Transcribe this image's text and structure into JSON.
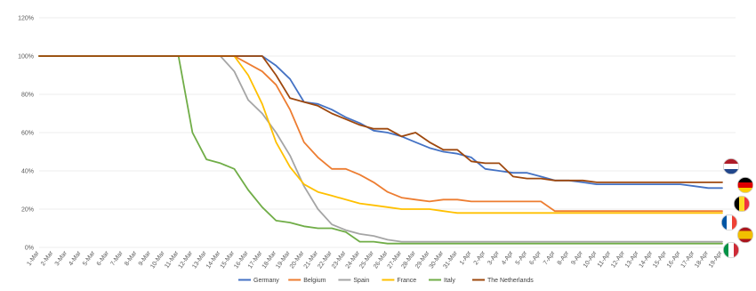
{
  "chart_data": {
    "type": "line",
    "title": "",
    "xlabel": "",
    "ylabel": "",
    "ylim": [
      0,
      120
    ],
    "yticks": [
      "0%",
      "20%",
      "40%",
      "60%",
      "80%",
      "100%",
      "120%"
    ],
    "grid": true,
    "legend_position": "bottom",
    "categories": [
      "1-Mar",
      "2-Mar",
      "3-Mar",
      "4-Mar",
      "5-Mar",
      "6-Mar",
      "7-Mar",
      "8-Mar",
      "9-Mar",
      "10-Mar",
      "11-Mar",
      "12-Mar",
      "13-Mar",
      "14-Mar",
      "15-Mar",
      "16-Mar",
      "17-Mar",
      "18-Mar",
      "19-Mar",
      "20-Mar",
      "21-Mar",
      "22-Mar",
      "23-Mar",
      "24-Mar",
      "25-Mar",
      "26-Mar",
      "27-Mar",
      "28-Mar",
      "29-Mar",
      "30-Mar",
      "31-Mar",
      "1-Apr",
      "2-Apr",
      "3-Apr",
      "4-Apr",
      "5-Apr",
      "6-Apr",
      "7-Apr",
      "8-Apr",
      "9-Apr",
      "10-Apr",
      "11-Apr",
      "12-Apr",
      "13-Apr",
      "14-Apr",
      "15-Apr",
      "16-Apr",
      "17-Apr",
      "18-Apr",
      "19-Apr"
    ],
    "series": [
      {
        "name": "Germany",
        "color": "#4472c4",
        "flag": "germany-flag-icon",
        "values": [
          100,
          100,
          100,
          100,
          100,
          100,
          100,
          100,
          100,
          100,
          100,
          100,
          100,
          100,
          100,
          100,
          100,
          95,
          88,
          76,
          75,
          72,
          68,
          65,
          61,
          60,
          58,
          55,
          52,
          50,
          49,
          47,
          41,
          40,
          39,
          39,
          37,
          35,
          35,
          34,
          33,
          33,
          33,
          33,
          33,
          33,
          33,
          32,
          31,
          31
        ]
      },
      {
        "name": "Belgium",
        "color": "#ed7d31",
        "flag": "belgium-flag-icon",
        "values": [
          100,
          100,
          100,
          100,
          100,
          100,
          100,
          100,
          100,
          100,
          100,
          100,
          100,
          100,
          100,
          96,
          92,
          85,
          72,
          55,
          47,
          41,
          41,
          38,
          34,
          29,
          26,
          25,
          24,
          25,
          25,
          24,
          24,
          24,
          24,
          24,
          24,
          19,
          19,
          19,
          19,
          19,
          19,
          19,
          19,
          19,
          19,
          19,
          19,
          19
        ]
      },
      {
        "name": "Spain",
        "color": "#a5a5a5",
        "flag": "spain-flag-icon",
        "values": [
          100,
          100,
          100,
          100,
          100,
          100,
          100,
          100,
          100,
          100,
          100,
          100,
          100,
          100,
          92,
          77,
          70,
          60,
          48,
          32,
          20,
          12,
          9,
          7,
          6,
          4,
          3,
          3,
          3,
          3,
          3,
          3,
          3,
          3,
          3,
          3,
          3,
          3,
          3,
          3,
          3,
          3,
          3,
          3,
          3,
          3,
          3,
          3,
          3,
          3
        ]
      },
      {
        "name": "France",
        "color": "#ffc000",
        "flag": "france-flag-icon",
        "values": [
          100,
          100,
          100,
          100,
          100,
          100,
          100,
          100,
          100,
          100,
          100,
          100,
          100,
          100,
          100,
          90,
          75,
          55,
          42,
          33,
          29,
          27,
          25,
          23,
          22,
          21,
          20,
          20,
          20,
          19,
          18,
          18,
          18,
          18,
          18,
          18,
          18,
          18,
          18,
          18,
          18,
          18,
          18,
          18,
          18,
          18,
          18,
          18,
          18,
          18
        ]
      },
      {
        "name": "Italy",
        "color": "#70ad47",
        "flag": "italy-flag-icon",
        "values": [
          100,
          100,
          100,
          100,
          100,
          100,
          100,
          100,
          100,
          100,
          100,
          60,
          46,
          44,
          41,
          30,
          21,
          14,
          13,
          11,
          10,
          10,
          8,
          3,
          3,
          2,
          2,
          2,
          2,
          2,
          2,
          2,
          2,
          2,
          2,
          2,
          2,
          2,
          2,
          2,
          2,
          2,
          2,
          2,
          2,
          2,
          2,
          2,
          2,
          2
        ]
      },
      {
        "name": "The Netherlands",
        "color": "#9e480e",
        "flag": "netherlands-flag-icon",
        "values": [
          100,
          100,
          100,
          100,
          100,
          100,
          100,
          100,
          100,
          100,
          100,
          100,
          100,
          100,
          100,
          100,
          100,
          90,
          78,
          76,
          74,
          70,
          67,
          64,
          62,
          62,
          58,
          60,
          55,
          51,
          51,
          45,
          44,
          44,
          37,
          36,
          36,
          35,
          35,
          35,
          34,
          34,
          34,
          34,
          34,
          34,
          34,
          34,
          34,
          34
        ]
      }
    ]
  }
}
